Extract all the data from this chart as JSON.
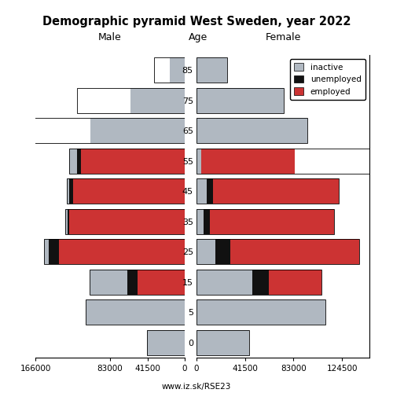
{
  "title": "Demographic pyramid West Sweden, year 2022",
  "subtitle_left": "Male",
  "subtitle_mid": "Age",
  "subtitle_right": "Female",
  "url": "www.iz.sk/RSE23",
  "age_groups": [
    0,
    5,
    15,
    25,
    35,
    45,
    55,
    65,
    75,
    85
  ],
  "colors": {
    "inactive": "#b0b8c1",
    "unemployed": "#111111",
    "employed": "#cc3333",
    "white_bar": "#ffffff"
  },
  "left_inactive": [
    42000,
    110000,
    42000,
    5000,
    2000,
    3000,
    8000,
    105000,
    60000,
    17000
  ],
  "left_unemployed": [
    0,
    0,
    12000,
    11000,
    2500,
    4000,
    5000,
    0,
    0,
    0
  ],
  "left_employed": [
    0,
    0,
    52000,
    140000,
    128000,
    124000,
    115000,
    0,
    0,
    0
  ],
  "left_white": [
    0,
    0,
    0,
    0,
    0,
    0,
    0,
    105000,
    60000,
    17000
  ],
  "right_inactive": [
    45000,
    110000,
    48000,
    16000,
    6000,
    9000,
    4000,
    95000,
    75000,
    26000
  ],
  "right_unemployed": [
    0,
    0,
    14000,
    13000,
    5500,
    5000,
    0,
    0,
    0,
    0
  ],
  "right_employed": [
    0,
    0,
    45000,
    110000,
    106000,
    108000,
    80000,
    0,
    0,
    0
  ],
  "right_white": [
    0,
    0,
    0,
    0,
    0,
    0,
    90000,
    0,
    0,
    0
  ],
  "xlim_left": 166000,
  "xlim_right": 148000,
  "xticks_left": [
    -166000,
    -83000,
    -41500,
    0
  ],
  "xtick_labels_left": [
    "166000",
    "83000",
    "41500",
    "0"
  ],
  "xticks_right": [
    0,
    41500,
    83000,
    124500
  ],
  "xtick_labels_right": [
    "0",
    "41500",
    "83000",
    "124500"
  ],
  "bar_height": 0.82,
  "figsize": [
    5.0,
    5.0
  ],
  "dpi": 100
}
